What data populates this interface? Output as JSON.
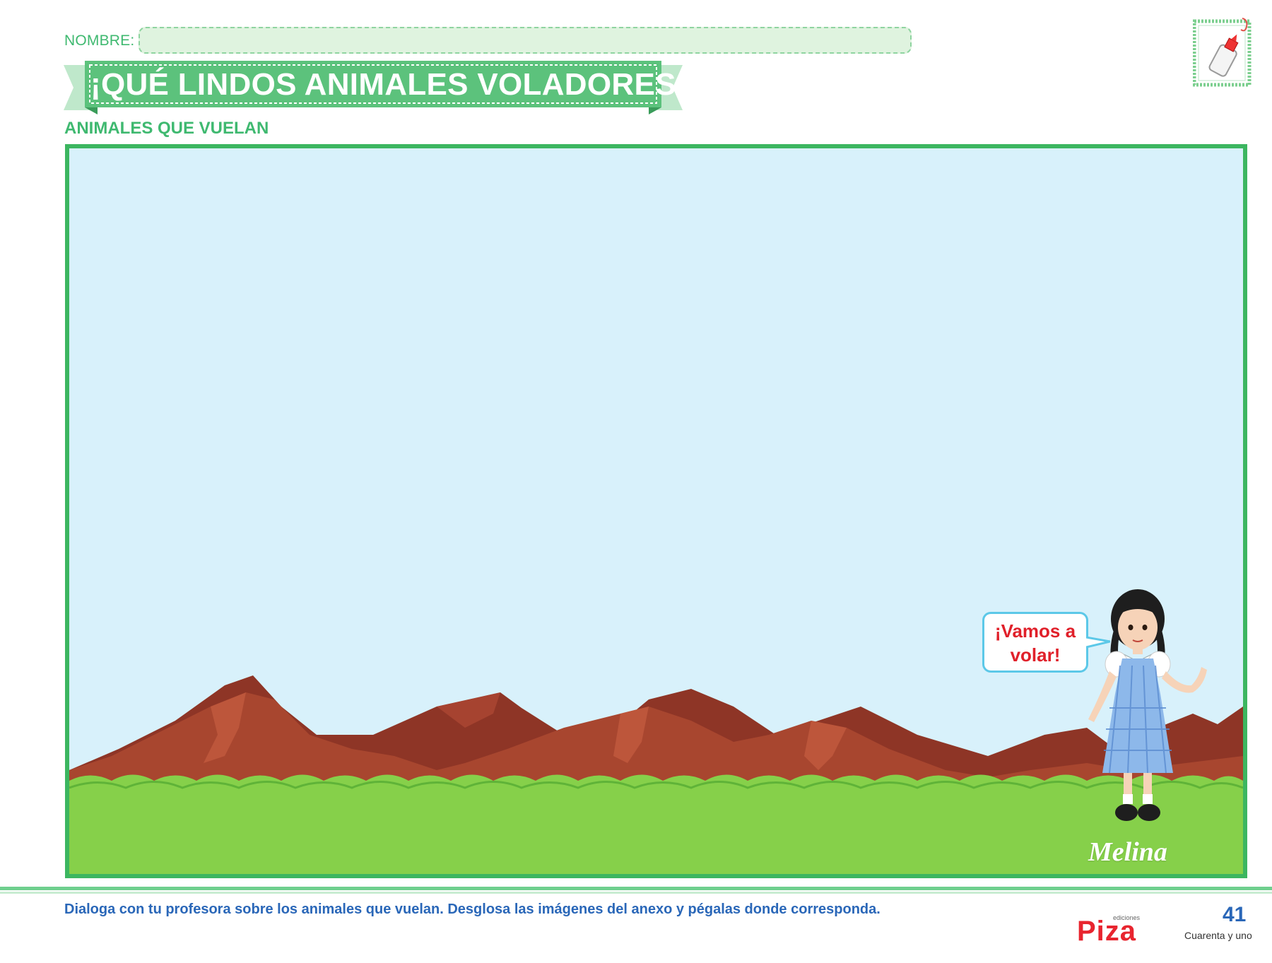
{
  "header": {
    "nombre_label": "NOMBRE:",
    "title": "¡QUÉ LINDOS ANIMALES VOLADORES!",
    "subtitle": "ANIMALES QUE VUELAN"
  },
  "scene": {
    "speech_line1": "¡Vamos a",
    "speech_line2": "volar!",
    "character_name": "Melina"
  },
  "footer": {
    "instructions": "Dialoga con tu profesora sobre los animales que vuelan. Desglosa las imágenes del anexo y pégalas donde corresponda.",
    "publisher_small": "ediciones",
    "publisher_name": "Piza",
    "page_number": "41",
    "page_number_words": "Cuarenta y uno"
  },
  "colors": {
    "accent_green": "#3fb970",
    "frame_green": "#3cb660",
    "sky": "#d8f1fb",
    "mountain": "#a0402e",
    "grass": "#86d04a",
    "footer_blue": "#2a67b8",
    "speech_red": "#e0202a",
    "brand_red": "#e8252f"
  },
  "icons": {
    "glue": "glue-bottle-icon"
  }
}
